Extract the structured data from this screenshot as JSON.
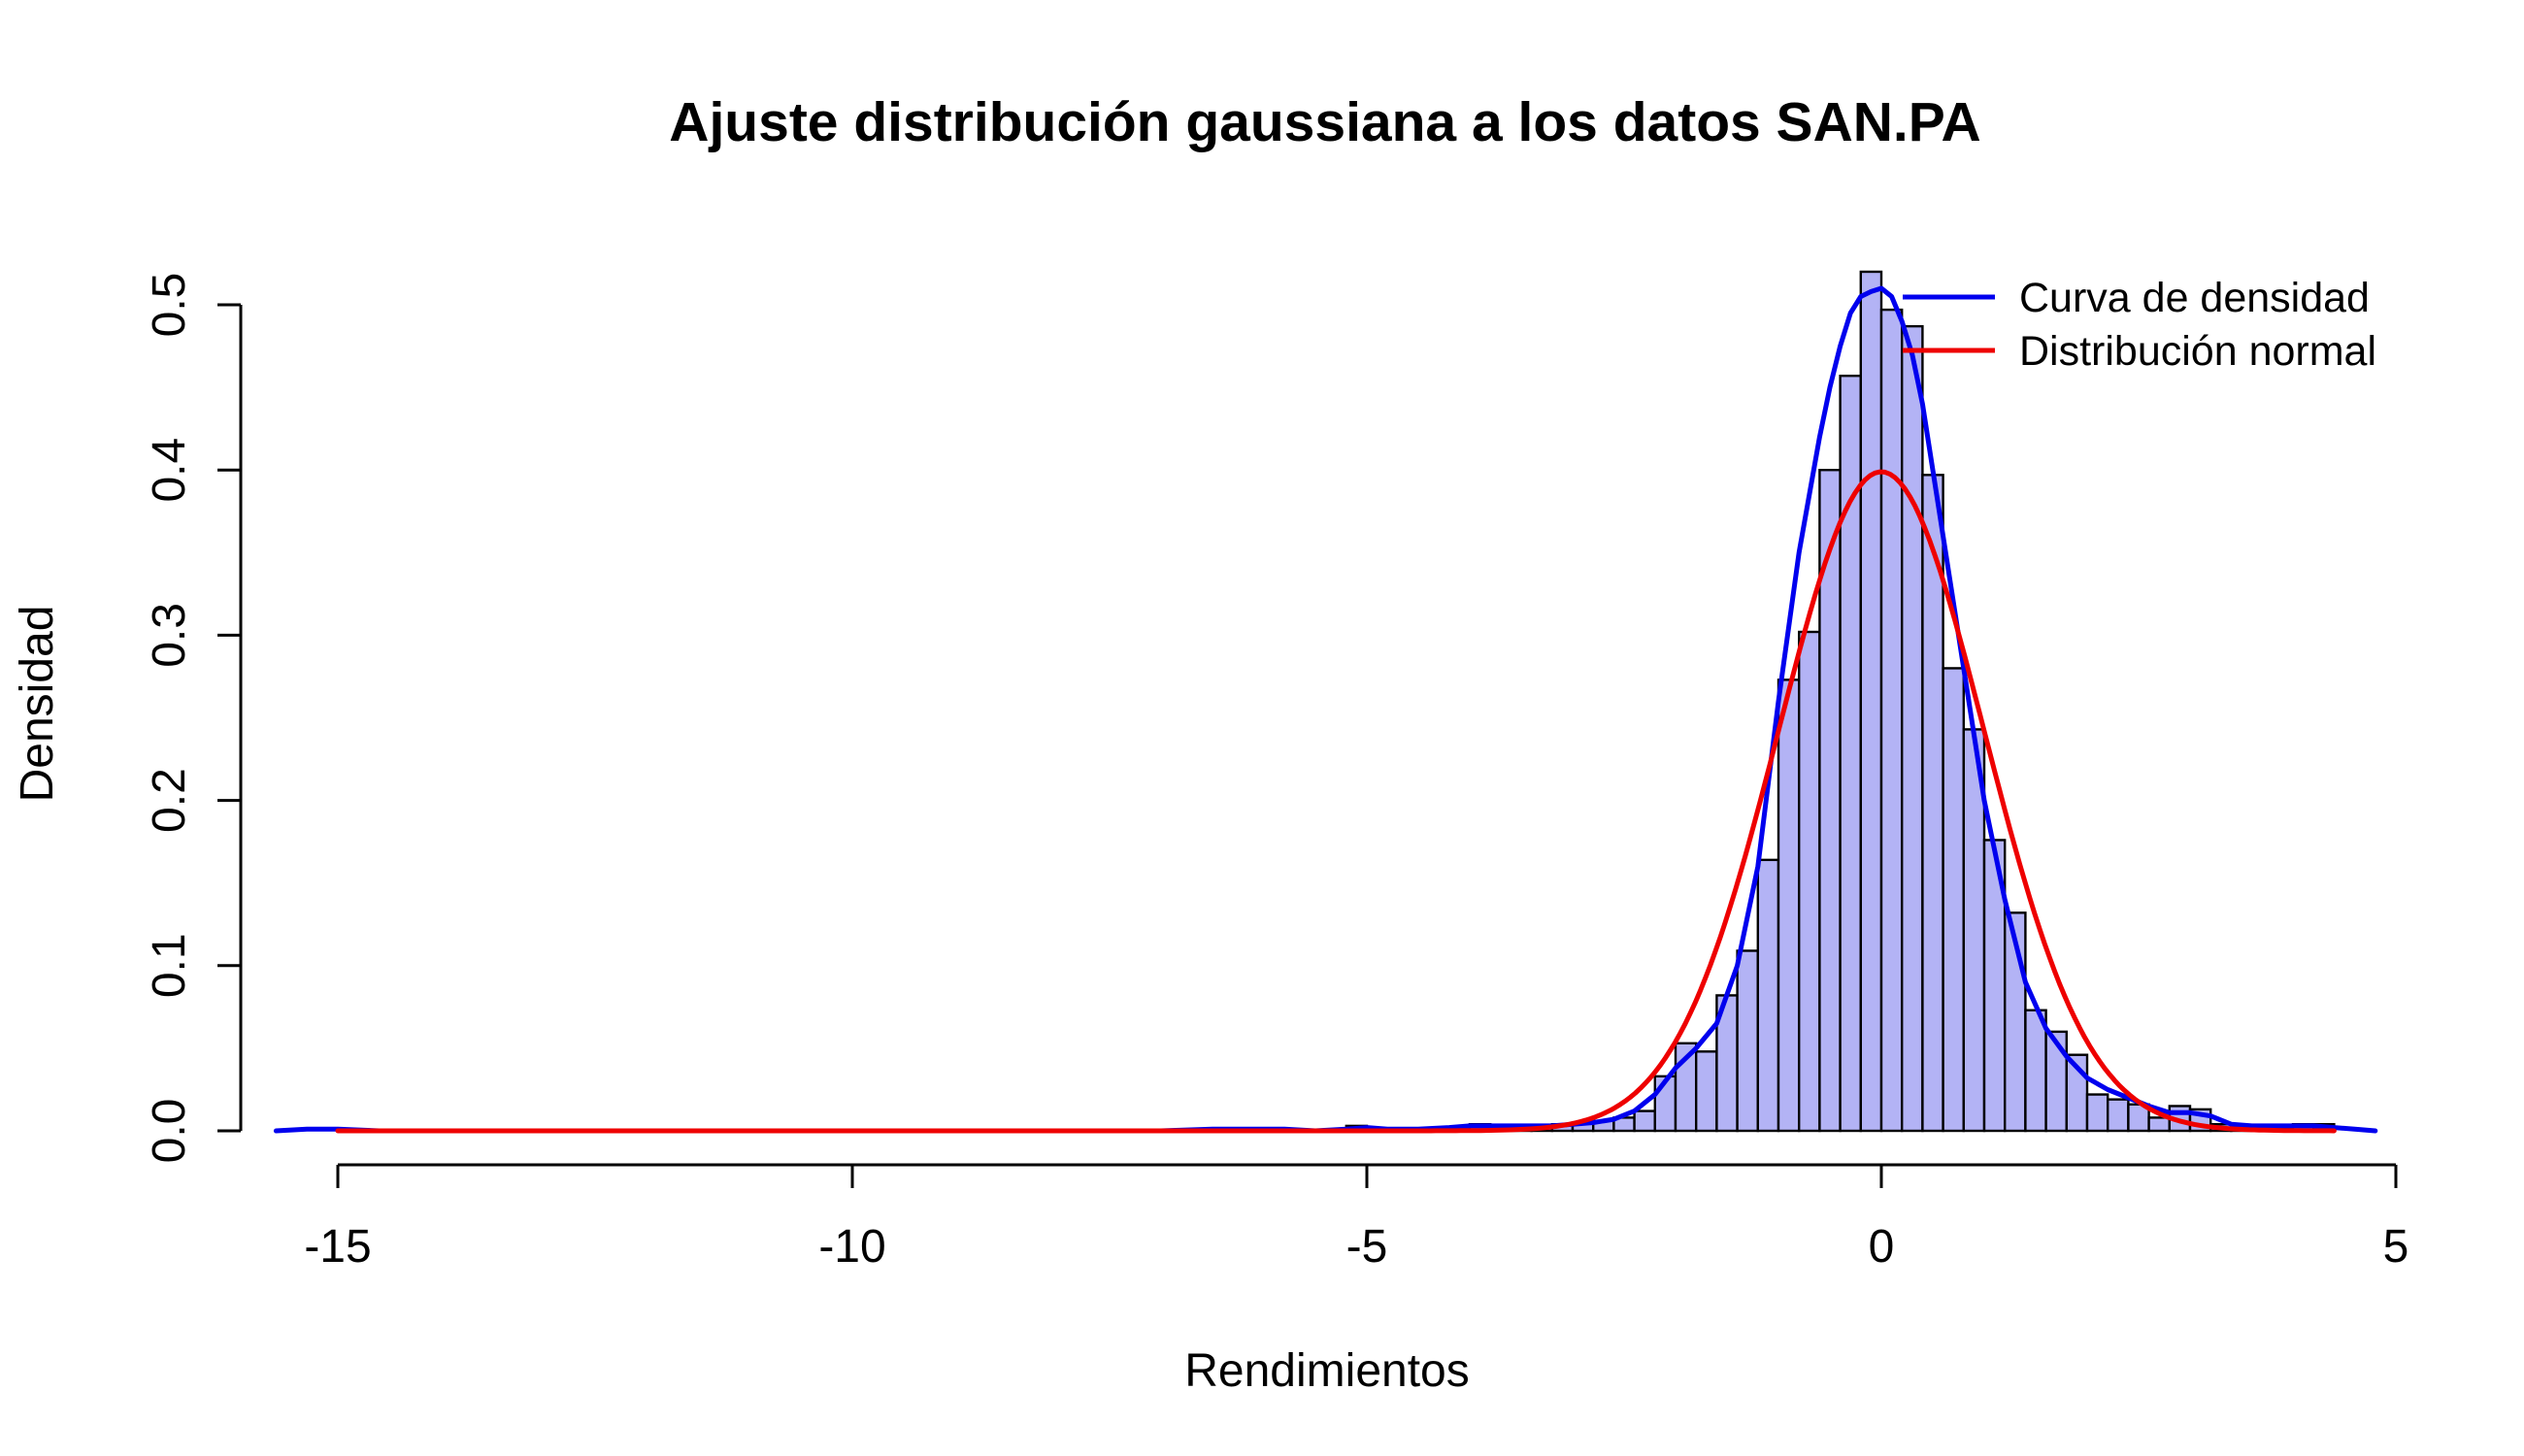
{
  "chart_data": {
    "type": "bar",
    "title": "Ajuste distribución gaussiana a los datos SAN.PA",
    "xlabel": "Rendimientos",
    "ylabel": "Densidad",
    "xlim": [
      -15.6,
      4.8
    ],
    "ylim": [
      0,
      0.52
    ],
    "x_ticks": [
      -15,
      -10,
      -5,
      0,
      5
    ],
    "x_tick_labels": [
      "-15",
      "-10",
      "-5",
      "0",
      "5"
    ],
    "y_ticks": [
      0,
      0.1,
      0.2,
      0.3,
      0.4,
      0.5
    ],
    "y_tick_labels": [
      "0.0",
      "0.1",
      "0.2",
      "0.3",
      "0.4",
      "0.5"
    ],
    "histogram": {
      "bin_width": 0.2,
      "fill_color": "#b3b3f5",
      "bins_start": [
        -5.2,
        -4.0,
        -3.8,
        -3.6,
        -3.4,
        -3.2,
        -3.0,
        -2.8,
        -2.6,
        -2.4,
        -2.2,
        -2.0,
        -1.8,
        -1.6,
        -1.4,
        -1.2,
        -1.0,
        -0.8,
        -0.6,
        -0.4,
        -0.2,
        0.0,
        0.2,
        0.4,
        0.6,
        0.8,
        1.0,
        1.2,
        1.4,
        1.6,
        1.8,
        2.0,
        2.2,
        2.4,
        2.6,
        2.8,
        3.0,
        3.2,
        3.4,
        3.6,
        3.8,
        4.0,
        4.2
      ],
      "densities": [
        0.003,
        0.004,
        0.002,
        0.003,
        0.003,
        0.004,
        0.005,
        0.006,
        0.008,
        0.012,
        0.033,
        0.053,
        0.048,
        0.082,
        0.109,
        0.164,
        0.273,
        0.302,
        0.4,
        0.457,
        0.52,
        0.497,
        0.487,
        0.397,
        0.28,
        0.243,
        0.176,
        0.132,
        0.073,
        0.06,
        0.046,
        0.022,
        0.019,
        0.016,
        0.008,
        0.015,
        0.013,
        0.004,
        0.003,
        0.003,
        0.002,
        0.004,
        0.004
      ]
    },
    "series": [
      {
        "name": "Curva de densidad",
        "color": "#0000ee",
        "x": [
          -15.6,
          -15.3,
          -15.0,
          -14.6,
          -14.0,
          -12.0,
          -10.0,
          -8.0,
          -7.0,
          -6.5,
          -6.2,
          -5.8,
          -5.5,
          -5.2,
          -5.0,
          -4.8,
          -4.5,
          -4.2,
          -4.0,
          -3.8,
          -3.5,
          -3.2,
          -3.0,
          -2.8,
          -2.6,
          -2.4,
          -2.2,
          -2.0,
          -1.8,
          -1.6,
          -1.4,
          -1.2,
          -1.0,
          -0.8,
          -0.6,
          -0.5,
          -0.4,
          -0.3,
          -0.2,
          -0.1,
          0.0,
          0.1,
          0.2,
          0.3,
          0.4,
          0.5,
          0.6,
          0.8,
          1.0,
          1.2,
          1.4,
          1.6,
          1.8,
          2.0,
          2.2,
          2.4,
          2.6,
          2.8,
          3.0,
          3.2,
          3.4,
          3.6,
          3.8,
          4.0,
          4.2,
          4.4,
          4.6,
          4.8
        ],
        "y": [
          0.0,
          0.001,
          0.001,
          0.0,
          0.0,
          0.0,
          0.0,
          0.0,
          0.0,
          0.001,
          0.001,
          0.001,
          0.0,
          0.001,
          0.002,
          0.001,
          0.001,
          0.002,
          0.003,
          0.003,
          0.003,
          0.003,
          0.004,
          0.005,
          0.007,
          0.012,
          0.022,
          0.038,
          0.05,
          0.065,
          0.1,
          0.16,
          0.26,
          0.35,
          0.42,
          0.45,
          0.475,
          0.495,
          0.505,
          0.508,
          0.51,
          0.505,
          0.49,
          0.47,
          0.44,
          0.4,
          0.36,
          0.28,
          0.2,
          0.14,
          0.09,
          0.062,
          0.045,
          0.032,
          0.025,
          0.02,
          0.015,
          0.011,
          0.011,
          0.009,
          0.004,
          0.003,
          0.003,
          0.003,
          0.003,
          0.002,
          0.001,
          0.0
        ]
      },
      {
        "name": "Distribución normal",
        "color": "#ee0000",
        "mean": 0.0,
        "sd": 1.0,
        "x_range": [
          -15.0,
          4.4
        ]
      }
    ],
    "legend": {
      "placement": "top-right",
      "entries": [
        "Curva de densidad",
        "Distribución normal"
      ]
    }
  }
}
